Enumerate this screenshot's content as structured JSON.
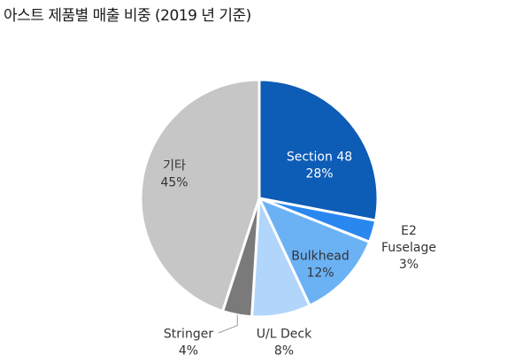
{
  "title": "아스트 제품별 매출 비중 (2019 년 기준)",
  "chart_data": {
    "type": "pie",
    "title": "아스트 제품별 매출 비중 (2019 년 기준)",
    "start_angle_deg": 0,
    "direction": "clockwise",
    "slices": [
      {
        "label": "Section 48",
        "value": 28,
        "value_label": "28%",
        "color": "#0d5cb6",
        "label_color": "#ffffff",
        "label_position": "inside"
      },
      {
        "label": "E2 Fuselage",
        "value": 3,
        "value_label": "3%",
        "color": "#2a87f0",
        "label_color": "#333333",
        "label_position": "outside"
      },
      {
        "label": "Bulkhead",
        "value": 12,
        "value_label": "12%",
        "color": "#6bb2f5",
        "label_color": "#333333",
        "label_position": "inside"
      },
      {
        "label": "U/L Deck",
        "value": 8,
        "value_label": "8%",
        "color": "#b1d5fb",
        "label_color": "#333333",
        "label_position": "outside"
      },
      {
        "label": "Stringer",
        "value": 4,
        "value_label": "4%",
        "color": "#7a7a7a",
        "label_color": "#333333",
        "label_position": "outside"
      },
      {
        "label": "기타",
        "value": 45,
        "value_label": "45%",
        "color": "#c6c6c6",
        "label_color": "#333333",
        "label_position": "inside"
      }
    ]
  }
}
